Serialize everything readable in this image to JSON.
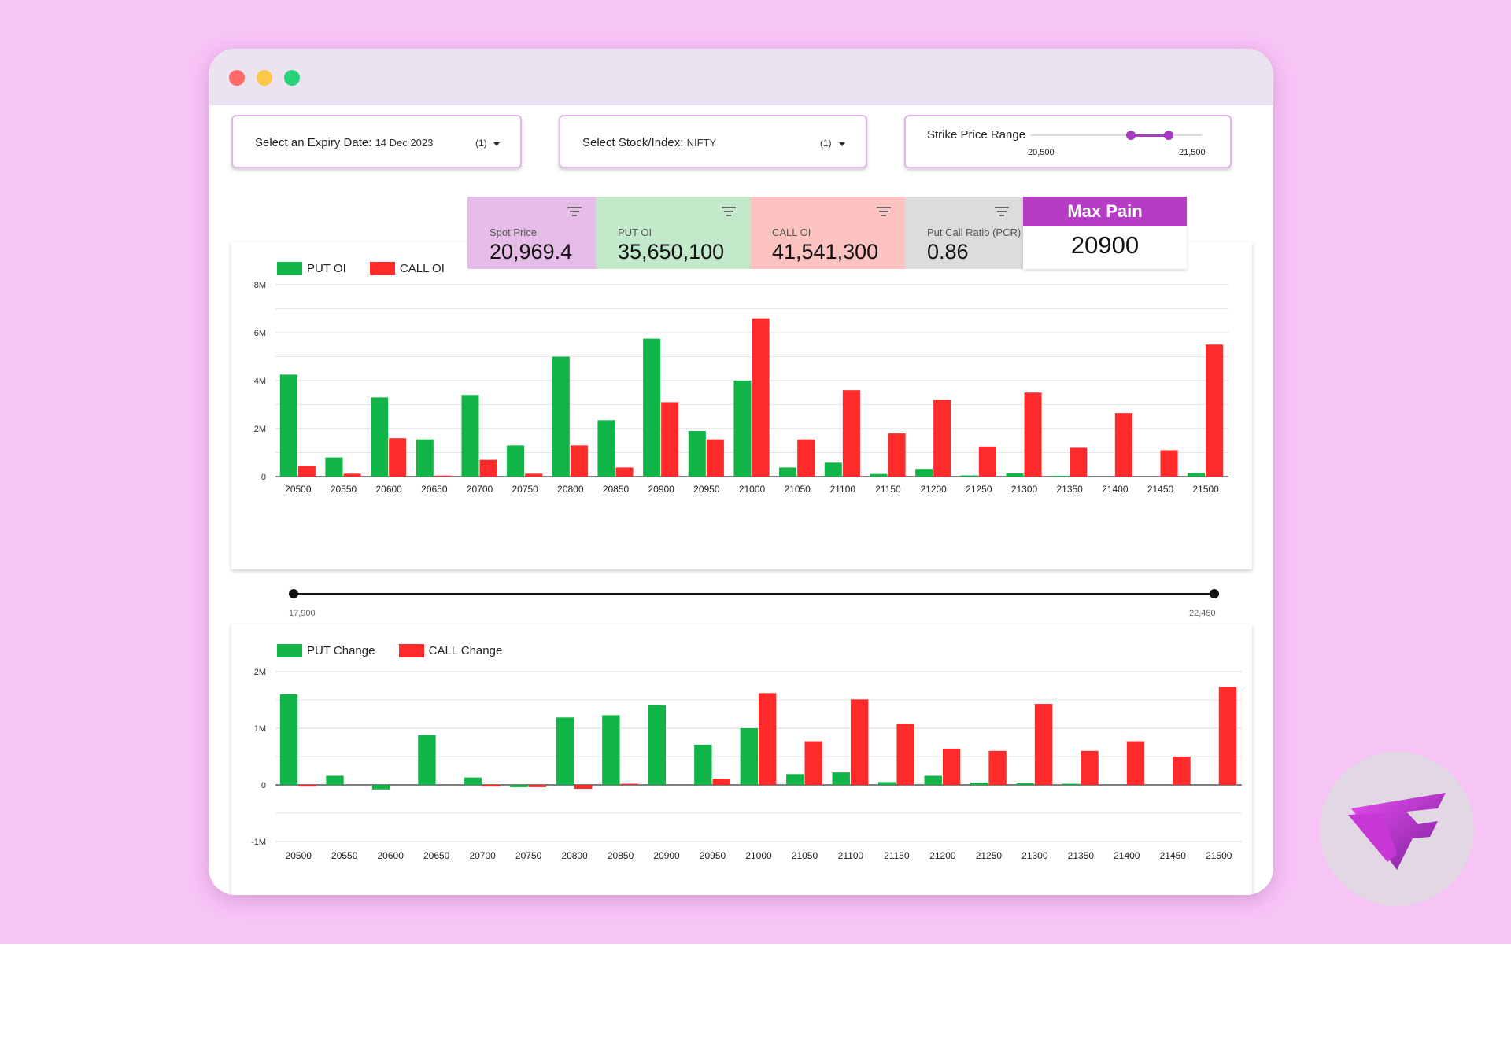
{
  "colors": {
    "put": "#11b446",
    "call": "#ff2a2a",
    "accent": "#b63cc6",
    "background": "#f7c4f6"
  },
  "filters": {
    "expiry": {
      "label": "Select an Expiry Date:",
      "value": "14 Dec 2023",
      "count": "(1)"
    },
    "stock": {
      "label": "Select Stock/Index:",
      "value": "NIFTY",
      "count": "(1)"
    },
    "strike_range": {
      "label": "Strike Price Range",
      "min_label": "20,500",
      "max_label": "21,500"
    }
  },
  "kpis": [
    {
      "title": "Spot Price",
      "value": "20,969.4",
      "bg": "#e6bde9"
    },
    {
      "title": "PUT OI",
      "value": "35,650,100",
      "bg": "#c2e9c9"
    },
    {
      "title": "CALL OI",
      "value": "41,541,300",
      "bg": "#fcc3c1"
    },
    {
      "title": "Put Call Ratio (PCR)",
      "value": "0.86",
      "bg": "#dcdcdc"
    }
  ],
  "max_pain": {
    "title": "Max Pain",
    "value": "20900"
  },
  "range_slider": {
    "min_label": "17,900",
    "max_label": "22,450"
  },
  "chart_data": [
    {
      "type": "bar",
      "legend_placement": "top-left",
      "categories": [
        "20500",
        "20550",
        "20600",
        "20650",
        "20700",
        "20750",
        "20800",
        "20850",
        "20900",
        "20950",
        "21000",
        "21050",
        "21100",
        "21150",
        "21200",
        "21250",
        "21300",
        "21350",
        "21400",
        "21450",
        "21500"
      ],
      "series": [
        {
          "name": "PUT OI",
          "values": [
            4250000,
            800000,
            3300000,
            1550000,
            3400000,
            1300000,
            5000000,
            2350000,
            5750000,
            1900000,
            4000000,
            380000,
            580000,
            110000,
            320000,
            50000,
            130000,
            30000,
            0,
            0,
            150000
          ]
        },
        {
          "name": "CALL OI",
          "values": [
            450000,
            120000,
            1600000,
            40000,
            700000,
            120000,
            1300000,
            380000,
            3100000,
            1550000,
            6600000,
            1550000,
            3600000,
            1800000,
            3200000,
            1250000,
            3500000,
            1200000,
            2650000,
            1100000,
            5500000
          ]
        }
      ],
      "ylim": [
        0,
        8000000
      ],
      "yticks": [
        0,
        2000000,
        4000000,
        6000000,
        8000000
      ],
      "ytick_labels": [
        "0",
        "2M",
        "4M",
        "6M",
        "8M"
      ],
      "grid": true
    },
    {
      "type": "bar",
      "legend_placement": "top-left",
      "categories": [
        "20500",
        "20550",
        "20600",
        "20650",
        "20700",
        "20750",
        "20800",
        "20850",
        "20900",
        "20950",
        "21000",
        "21050",
        "21100",
        "21150",
        "21200",
        "21250",
        "21300",
        "21350",
        "21400",
        "21450",
        "21500"
      ],
      "series": [
        {
          "name": "PUT Change",
          "values": [
            1600000,
            160000,
            -80000,
            880000,
            130000,
            -40000,
            1190000,
            1230000,
            1410000,
            710000,
            1000000,
            190000,
            220000,
            50000,
            160000,
            40000,
            30000,
            20000,
            0,
            0,
            0
          ]
        },
        {
          "name": "CALL Change",
          "values": [
            -30000,
            0,
            0,
            0,
            -30000,
            -40000,
            -70000,
            20000,
            0,
            110000,
            1620000,
            770000,
            1510000,
            1080000,
            640000,
            600000,
            1430000,
            600000,
            770000,
            500000,
            1730000
          ]
        }
      ],
      "ylim": [
        -1000000,
        2000000
      ],
      "yticks": [
        -1000000,
        0,
        1000000,
        2000000
      ],
      "ytick_labels": [
        "-1M",
        "0",
        "1M",
        "2M"
      ],
      "grid": true
    }
  ]
}
